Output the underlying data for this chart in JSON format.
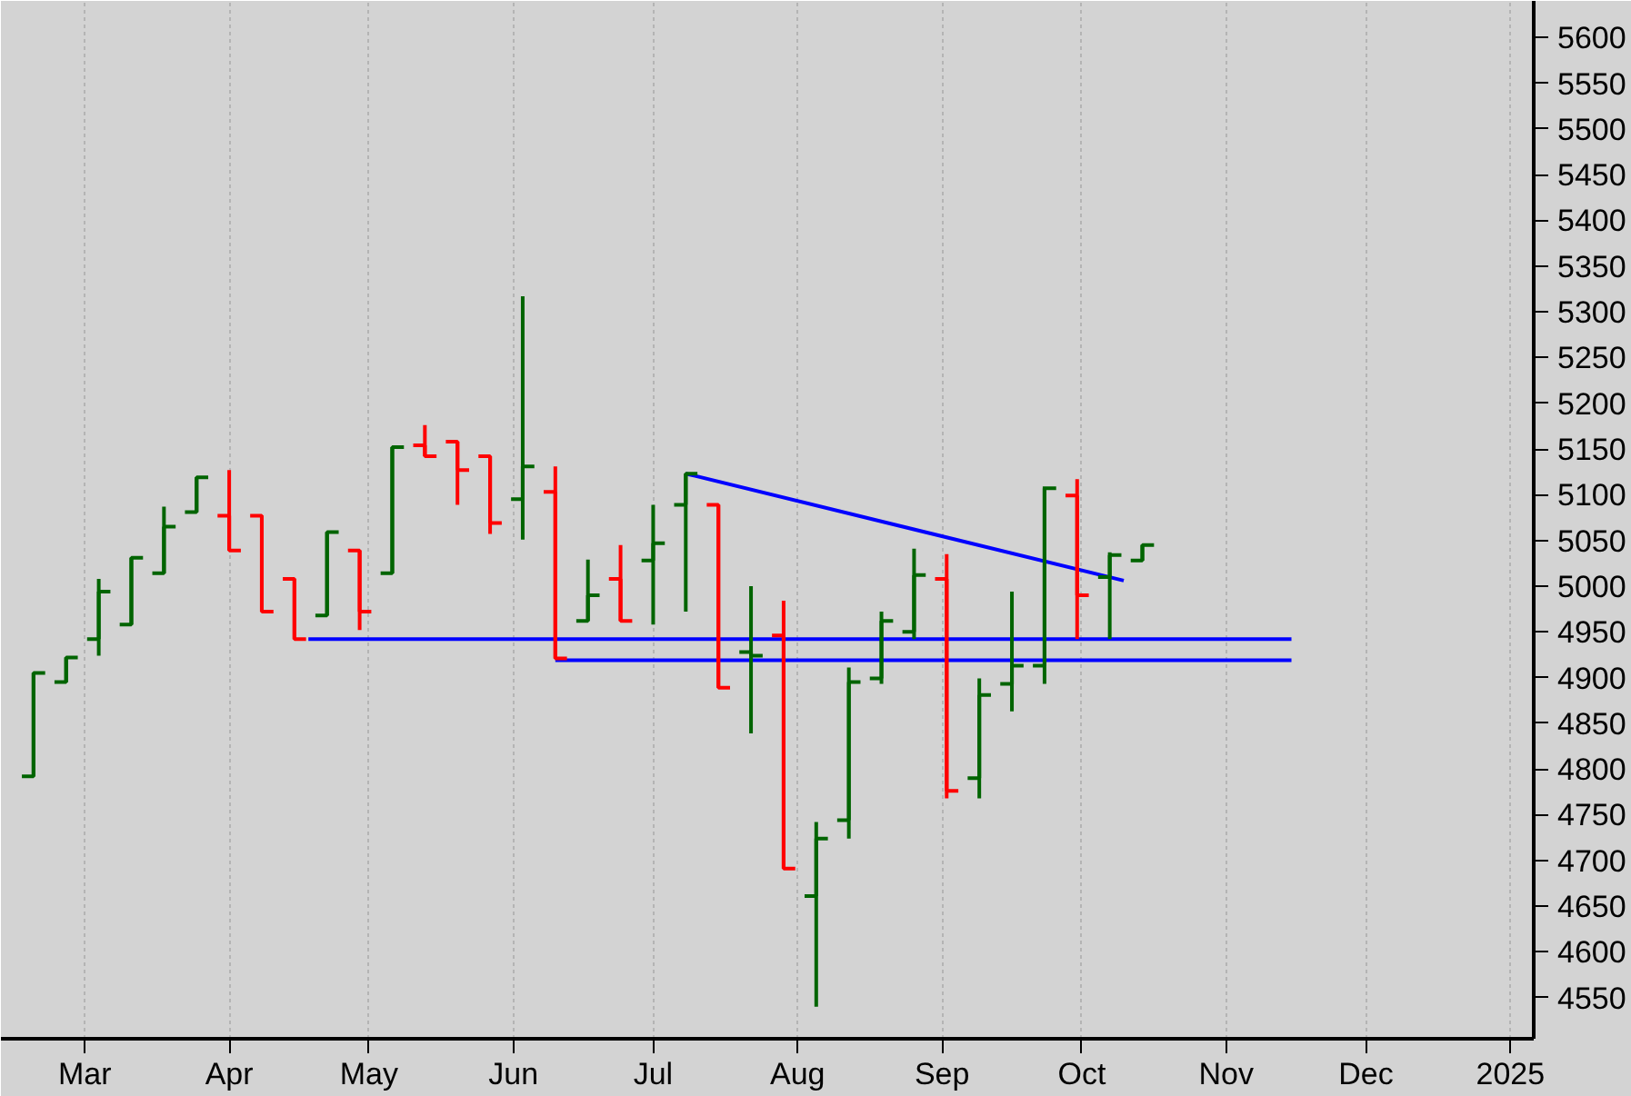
{
  "chart_data": {
    "type": "candlestick",
    "x": [
      "2024-02-19",
      "2024-02-26",
      "2024-03-04",
      "2024-03-11",
      "2024-03-18",
      "2024-03-25",
      "2024-04-01",
      "2024-04-08",
      "2024-04-15",
      "2024-04-22",
      "2024-04-29",
      "2024-05-06",
      "2024-05-13",
      "2024-05-20",
      "2024-05-27",
      "2024-06-03",
      "2024-06-10",
      "2024-06-17",
      "2024-06-24",
      "2024-07-01",
      "2024-07-08",
      "2024-07-15",
      "2024-07-22",
      "2024-07-29",
      "2024-08-05",
      "2024-08-12",
      "2024-08-19",
      "2024-08-26",
      "2024-09-02",
      "2024-09-09",
      "2024-09-16",
      "2024-09-23",
      "2024-09-30",
      "2024-10-07",
      "2024-10-14"
    ],
    "ohlc": [
      [
        4792,
        4905,
        4792,
        4905
      ],
      [
        4895,
        4922,
        4895,
        4922
      ],
      [
        4942,
        5008,
        4924,
        4994
      ],
      [
        4958,
        5031,
        4958,
        5031
      ],
      [
        5014,
        5087,
        5014,
        5065
      ],
      [
        5081,
        5119,
        5081,
        5119
      ],
      [
        5077,
        5127,
        5039,
        5039
      ],
      [
        5077,
        5077,
        4972,
        4972
      ],
      [
        5008,
        5008,
        4942,
        4942
      ],
      [
        4968,
        5059,
        4968,
        5059
      ],
      [
        5039,
        5039,
        4952,
        4972
      ],
      [
        5014,
        5152,
        5014,
        5152
      ],
      [
        5154,
        5176,
        5142,
        5142
      ],
      [
        5158,
        5158,
        5089,
        5127
      ],
      [
        5142,
        5142,
        5057,
        5069
      ],
      [
        5095,
        5317,
        5051,
        5131
      ],
      [
        5103,
        5131,
        4921,
        4921
      ],
      [
        4962,
        5029,
        4962,
        4990
      ],
      [
        5008,
        5045,
        4962,
        4962
      ],
      [
        5028,
        5089,
        4958,
        5047
      ],
      [
        5089,
        5123,
        4972,
        5123
      ],
      [
        5089,
        5089,
        4889,
        4889
      ],
      [
        4928,
        5000,
        4839,
        4924
      ],
      [
        4946,
        4984,
        4691,
        4691
      ],
      [
        4661,
        4742,
        4540,
        4724
      ],
      [
        4744,
        4911,
        4724,
        4895
      ],
      [
        4899,
        4972,
        4893,
        4962
      ],
      [
        4950,
        5041,
        4942,
        5012
      ],
      [
        5008,
        5035,
        4768,
        4776
      ],
      [
        4790,
        4899,
        4768,
        4881
      ],
      [
        4893,
        4994,
        4863,
        4913
      ],
      [
        4913,
        5109,
        4893,
        5107
      ],
      [
        5099,
        5117,
        4942,
        4990
      ],
      [
        5010,
        5037,
        4942,
        5034
      ],
      [
        5028,
        5045,
        5028,
        5045
      ]
    ],
    "colors": [
      "#006400",
      "#006400",
      "#006400",
      "#006400",
      "#006400",
      "#006400",
      "#ff0000",
      "#ff0000",
      "#ff0000",
      "#006400",
      "#ff0000",
      "#006400",
      "#ff0000",
      "#ff0000",
      "#ff0000",
      "#006400",
      "#ff0000",
      "#006400",
      "#ff0000",
      "#006400",
      "#006400",
      "#ff0000",
      "#006400",
      "#ff0000",
      "#006400",
      "#006400",
      "#006400",
      "#006400",
      "#ff0000",
      "#006400",
      "#006400",
      "#006400",
      "#ff0000",
      "#006400",
      "#006400"
    ],
    "series": [
      {
        "type": "line",
        "color": "#0000ff",
        "x": [
          "2024-04-18",
          "2024-11-15"
        ],
        "values": [
          4942,
          4942
        ]
      },
      {
        "type": "line",
        "color": "#0000ff",
        "x": [
          "2024-06-10",
          "2024-11-15"
        ],
        "values": [
          4919,
          4919
        ]
      },
      {
        "type": "line",
        "color": "#0000ff",
        "x": [
          "2024-07-08",
          "2024-10-10"
        ],
        "values": [
          5123,
          5006
        ]
      }
    ],
    "xlim": [
      "2024-02-12",
      "2025-01-06"
    ],
    "xticks": [
      {
        "value": "2024-03-01",
        "label": "Mar"
      },
      {
        "value": "2024-04-01",
        "label": "Apr"
      },
      {
        "value": "2024-05-01",
        "label": "May"
      },
      {
        "value": "2024-06-01",
        "label": "Jun"
      },
      {
        "value": "2024-07-01",
        "label": "Jul"
      },
      {
        "value": "2024-08-01",
        "label": "Aug"
      },
      {
        "value": "2024-09-01",
        "label": "Sep"
      },
      {
        "value": "2024-10-01",
        "label": "Oct"
      },
      {
        "value": "2024-11-01",
        "label": "Nov"
      },
      {
        "value": "2024-12-01",
        "label": "Dec"
      },
      {
        "value": "2025-01-01",
        "label": "2025"
      }
    ],
    "ylim": [
      4505,
      5640
    ],
    "yticks": [
      4550,
      4600,
      4650,
      4700,
      4750,
      4800,
      4850,
      4900,
      4950,
      5000,
      5050,
      5100,
      5150,
      5200,
      5250,
      5300,
      5350,
      5400,
      5450,
      5500,
      5550,
      5600
    ],
    "grid": "x"
  }
}
